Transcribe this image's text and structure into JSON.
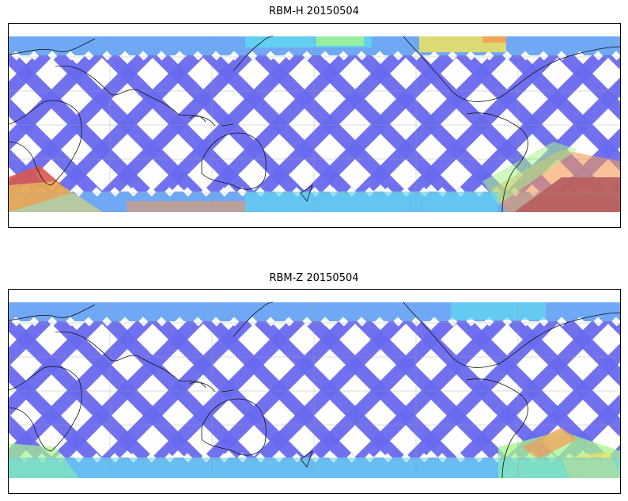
{
  "panels": [
    {
      "id": "rbm-h",
      "title": "RBM-H 20150504"
    },
    {
      "id": "rbm-z",
      "title": "RBM-Z 20150504"
    }
  ],
  "colors": {
    "track_base": "#6a6af0",
    "cyan": "#5fd8f0",
    "light_blue": "#6fa8f5",
    "green": "#a6f58c",
    "yellow": "#f0e35c",
    "orange": "#f59a55",
    "red": "#d9584f",
    "dark_red": "#b86060"
  }
}
